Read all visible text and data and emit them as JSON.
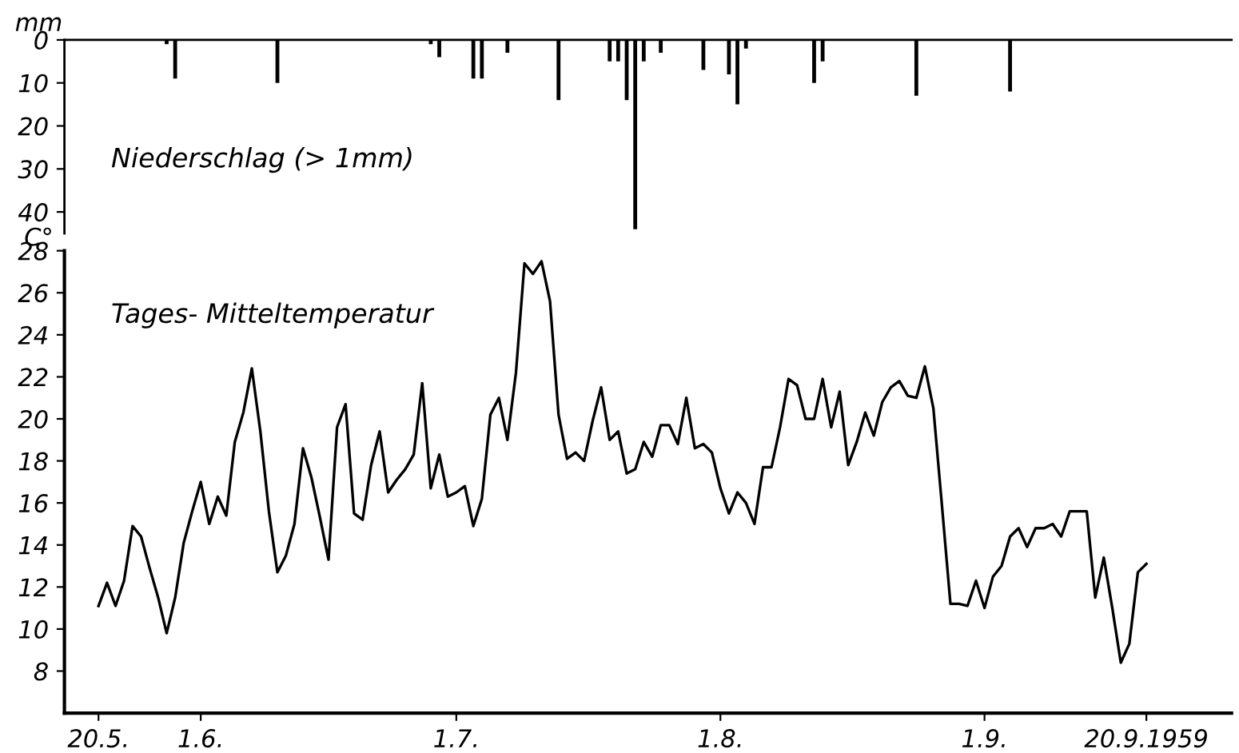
{
  "chart_data": [
    {
      "type": "bar",
      "ylabel": "mm",
      "annotations": [
        "Niederschlag (> 1mm)"
      ],
      "x": [
        "1959-05-28",
        "1959-05-29",
        "1959-06-10",
        "1959-06-28",
        "1959-06-29",
        "1959-07-03",
        "1959-07-04",
        "1959-07-07",
        "1959-07-13",
        "1959-07-19",
        "1959-07-20",
        "1959-07-21",
        "1959-07-22",
        "1959-07-23",
        "1959-07-25",
        "1959-07-30",
        "1959-08-02",
        "1959-08-03",
        "1959-08-04",
        "1959-08-12",
        "1959-08-13",
        "1959-08-24",
        "1959-09-04"
      ],
      "values": [
        1,
        9,
        10,
        1,
        4,
        9,
        9,
        3,
        14,
        5,
        5,
        14,
        44,
        5,
        3,
        7,
        8,
        15,
        2,
        10,
        5,
        13,
        12
      ],
      "color": "#000000",
      "xlim": [
        "1959-05-16",
        "1959-09-30"
      ],
      "ylim": [
        45,
        0
      ],
      "yticks": [
        0,
        10,
        20,
        30,
        40
      ],
      "tick_labels": "y",
      "grid": false
    },
    {
      "type": "line",
      "ylabel": "C°",
      "annotations": [
        "Tages- Mitteltemperatur"
      ],
      "x": [
        "1959-05-20",
        "1959-05-21",
        "1959-05-22",
        "1959-05-23",
        "1959-05-24",
        "1959-05-25",
        "1959-05-26",
        "1959-05-27",
        "1959-05-28",
        "1959-05-29",
        "1959-05-30",
        "1959-05-31",
        "1959-06-01",
        "1959-06-02",
        "1959-06-03",
        "1959-06-04",
        "1959-06-05",
        "1959-06-06",
        "1959-06-07",
        "1959-06-08",
        "1959-06-09",
        "1959-06-10",
        "1959-06-11",
        "1959-06-12",
        "1959-06-13",
        "1959-06-14",
        "1959-06-15",
        "1959-06-16",
        "1959-06-17",
        "1959-06-18",
        "1959-06-19",
        "1959-06-20",
        "1959-06-21",
        "1959-06-22",
        "1959-06-23",
        "1959-06-24",
        "1959-06-25",
        "1959-06-26",
        "1959-06-27",
        "1959-06-28",
        "1959-06-29",
        "1959-06-30",
        "1959-07-01",
        "1959-07-02",
        "1959-07-03",
        "1959-07-04",
        "1959-07-05",
        "1959-07-06",
        "1959-07-07",
        "1959-07-08",
        "1959-07-09",
        "1959-07-10",
        "1959-07-11",
        "1959-07-12",
        "1959-07-13",
        "1959-07-14",
        "1959-07-15",
        "1959-07-16",
        "1959-07-17",
        "1959-07-18",
        "1959-07-19",
        "1959-07-20",
        "1959-07-21",
        "1959-07-22",
        "1959-07-23",
        "1959-07-24",
        "1959-07-25",
        "1959-07-26",
        "1959-07-27",
        "1959-07-28",
        "1959-07-29",
        "1959-07-30",
        "1959-07-31",
        "1959-08-01",
        "1959-08-02",
        "1959-08-03",
        "1959-08-04",
        "1959-08-05",
        "1959-08-06",
        "1959-08-07",
        "1959-08-08",
        "1959-08-09",
        "1959-08-10",
        "1959-08-11",
        "1959-08-12",
        "1959-08-13",
        "1959-08-14",
        "1959-08-15",
        "1959-08-16",
        "1959-08-17",
        "1959-08-18",
        "1959-08-19",
        "1959-08-20",
        "1959-08-21",
        "1959-08-22",
        "1959-08-23",
        "1959-08-24",
        "1959-08-25",
        "1959-08-26",
        "1959-08-27",
        "1959-08-28",
        "1959-08-29",
        "1959-08-30",
        "1959-08-31",
        "1959-09-01",
        "1959-09-02",
        "1959-09-03",
        "1959-09-04",
        "1959-09-05",
        "1959-09-06",
        "1959-09-07",
        "1959-09-08",
        "1959-09-09",
        "1959-09-10",
        "1959-09-11",
        "1959-09-12",
        "1959-09-13",
        "1959-09-14",
        "1959-09-15",
        "1959-09-16",
        "1959-09-17",
        "1959-09-18",
        "1959-09-19",
        "1959-09-20"
      ],
      "values": [
        11.1,
        12.2,
        11.1,
        12.3,
        14.9,
        14.4,
        12.9,
        11.5,
        9.8,
        11.5,
        14.1,
        15.6,
        17.0,
        15.0,
        16.3,
        15.4,
        18.9,
        20.3,
        22.4,
        19.4,
        15.6,
        12.7,
        13.5,
        15.0,
        18.6,
        17.2,
        15.3,
        13.3,
        19.6,
        20.7,
        15.5,
        15.2,
        17.8,
        19.4,
        16.5,
        17.1,
        17.6,
        18.3,
        21.7,
        16.7,
        18.3,
        16.3,
        16.5,
        16.8,
        14.9,
        16.2,
        20.2,
        21.0,
        19.0,
        22.2,
        27.4,
        26.9,
        27.5,
        25.6,
        20.2,
        18.1,
        18.4,
        18.0,
        19.9,
        21.5,
        19.0,
        19.4,
        17.4,
        17.6,
        18.9,
        18.2,
        19.7,
        19.7,
        18.8,
        21.0,
        18.6,
        18.8,
        18.4,
        16.7,
        15.5,
        16.5,
        16.0,
        15.0,
        17.7,
        17.7,
        19.6,
        21.9,
        21.6,
        20.0,
        20.0,
        21.9,
        19.6,
        21.3,
        17.8,
        18.9,
        20.3,
        19.2,
        20.8,
        21.5,
        21.8,
        21.1,
        21.0,
        22.5,
        20.5,
        15.9,
        11.2,
        11.2,
        11.1,
        12.3,
        11.0,
        12.5,
        13.0,
        14.4,
        14.8,
        13.9,
        14.8,
        14.8,
        15.0,
        14.4,
        15.6,
        15.6,
        15.6,
        11.5,
        13.4,
        11.0,
        8.4,
        9.3,
        12.7,
        13.1
      ],
      "color": "#000000",
      "line_style": "solid",
      "marker": "none",
      "xlim": [
        "1959-05-16",
        "1959-09-30"
      ],
      "xticks": [
        {
          "value": "1959-05-20",
          "label": "20.5."
        },
        {
          "value": "1959-06-01",
          "label": "1.6."
        },
        {
          "value": "1959-07-01",
          "label": "1.7."
        },
        {
          "value": "1959-08-01",
          "label": "1.8."
        },
        {
          "value": "1959-09-01",
          "label": "1.9."
        },
        {
          "value": "1959-09-20",
          "label": "20.9.1959"
        }
      ],
      "ylim": [
        6,
        28
      ],
      "yticks": [
        8,
        10,
        12,
        14,
        16,
        18,
        20,
        22,
        24,
        26,
        28
      ],
      "grid": false
    }
  ]
}
